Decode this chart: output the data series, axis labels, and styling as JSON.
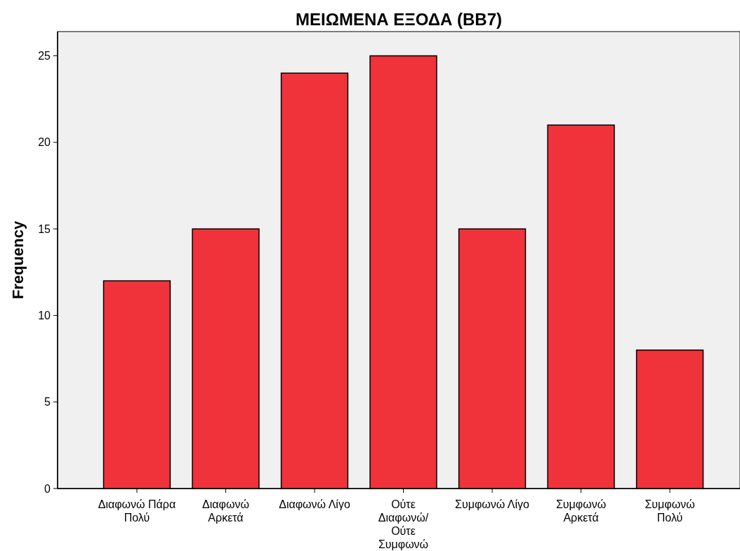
{
  "chart_data": {
    "type": "bar",
    "title": "ΜΕΙΩΜΕΝΑ ΕΞΟΔΑ (BB7)",
    "ylabel": "Frequency",
    "categories": [
      "Διαφωνώ Πάρα\nΠολύ",
      "Διαφωνώ\nΑρκετά",
      "Διαφωνώ Λίγο",
      "Ούτε\nΔιαφωνώ/\nΟύτε\nΣυμφωνώ",
      "Συμφωνώ Λίγο",
      "Συμφωνώ\nΑρκετά",
      "Συμφωνώ\nΠολύ"
    ],
    "values": [
      12,
      15,
      24,
      25,
      15,
      21,
      8
    ],
    "color": "#f0323a",
    "ylim": [
      0,
      26.4
    ],
    "yticks": [
      0,
      5,
      10,
      15,
      20,
      25
    ],
    "grid": false
  }
}
